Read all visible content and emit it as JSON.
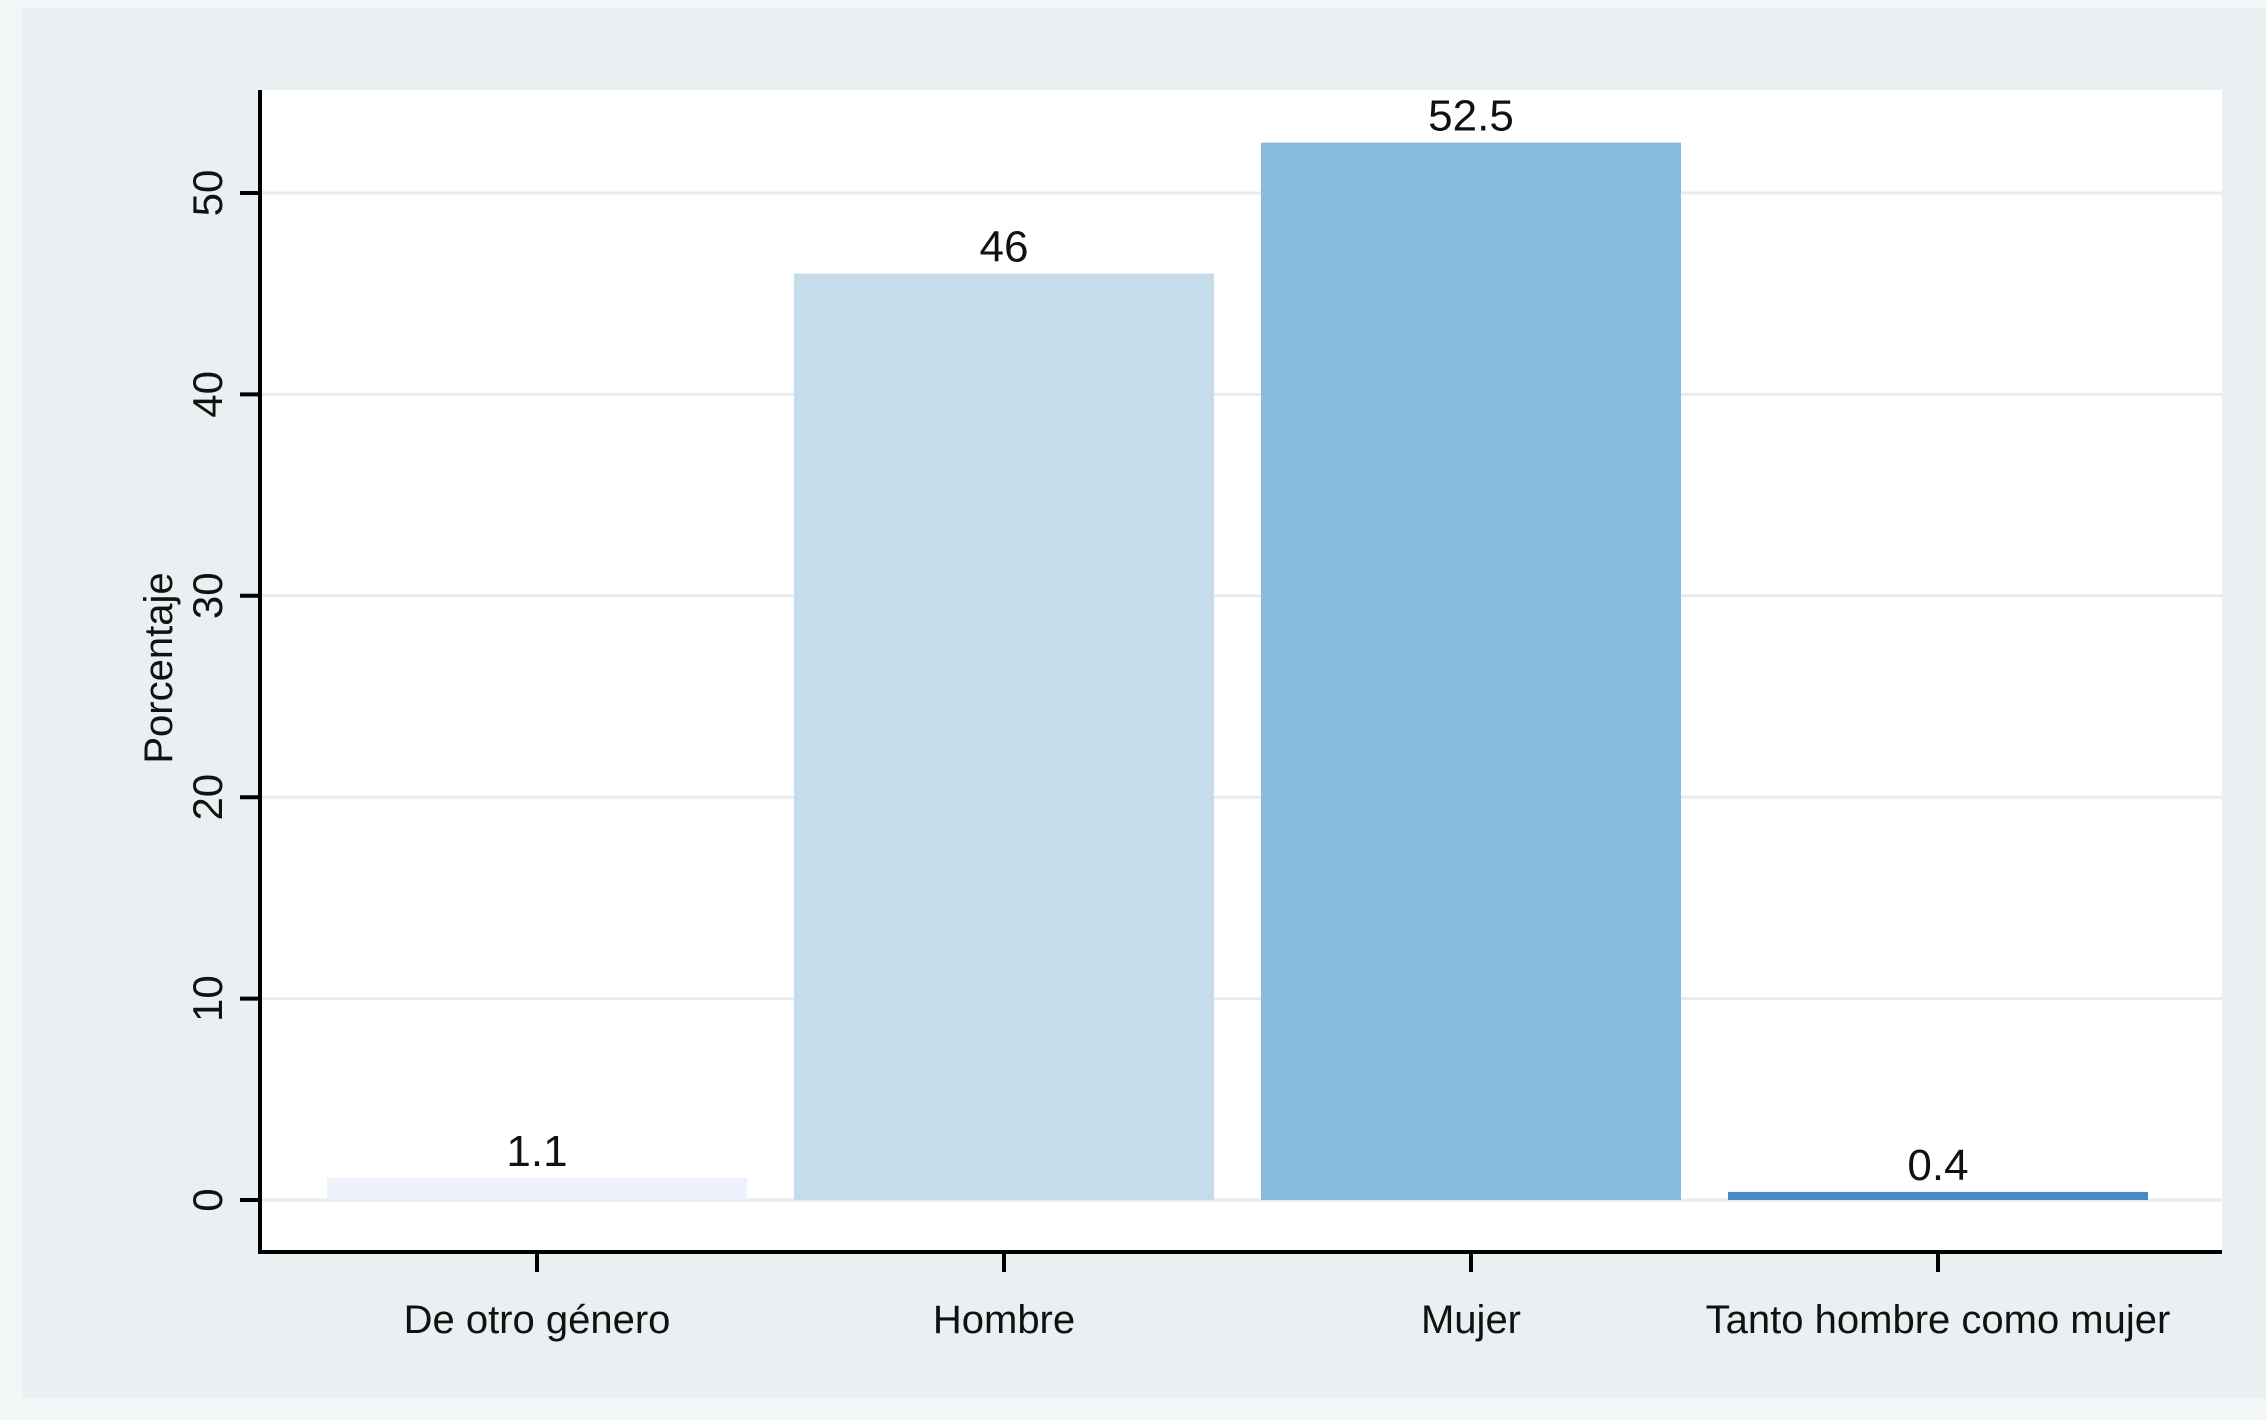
{
  "colors": {
    "page_background": "#f4f7f8",
    "outer_background": "#eaf0f2",
    "plot_background": "#ffffff",
    "gridline": "#e4eef0",
    "axis": "#000000",
    "text": "#111111",
    "bars": [
      "#eef1fb",
      "#c7dceb",
      "#89bbdf",
      "#4a8ac4"
    ]
  },
  "chart_data": {
    "type": "bar",
    "title": "",
    "xlabel": "",
    "ylabel": "Porcentaje",
    "categories": [
      "De otro género",
      "Hombre",
      "Mujer",
      "Tanto hombre como mujer"
    ],
    "values": [
      1.1,
      46,
      52.5,
      0.4
    ],
    "value_labels": [
      "1.1",
      "46",
      "52.5",
      "0.4"
    ],
    "ylim": [
      0,
      55
    ],
    "yticks": [
      0,
      10,
      20,
      30,
      40,
      50
    ],
    "ytick_labels": [
      "0",
      "10",
      "20",
      "30",
      "40",
      "50"
    ],
    "grid": true,
    "legend": "none"
  }
}
